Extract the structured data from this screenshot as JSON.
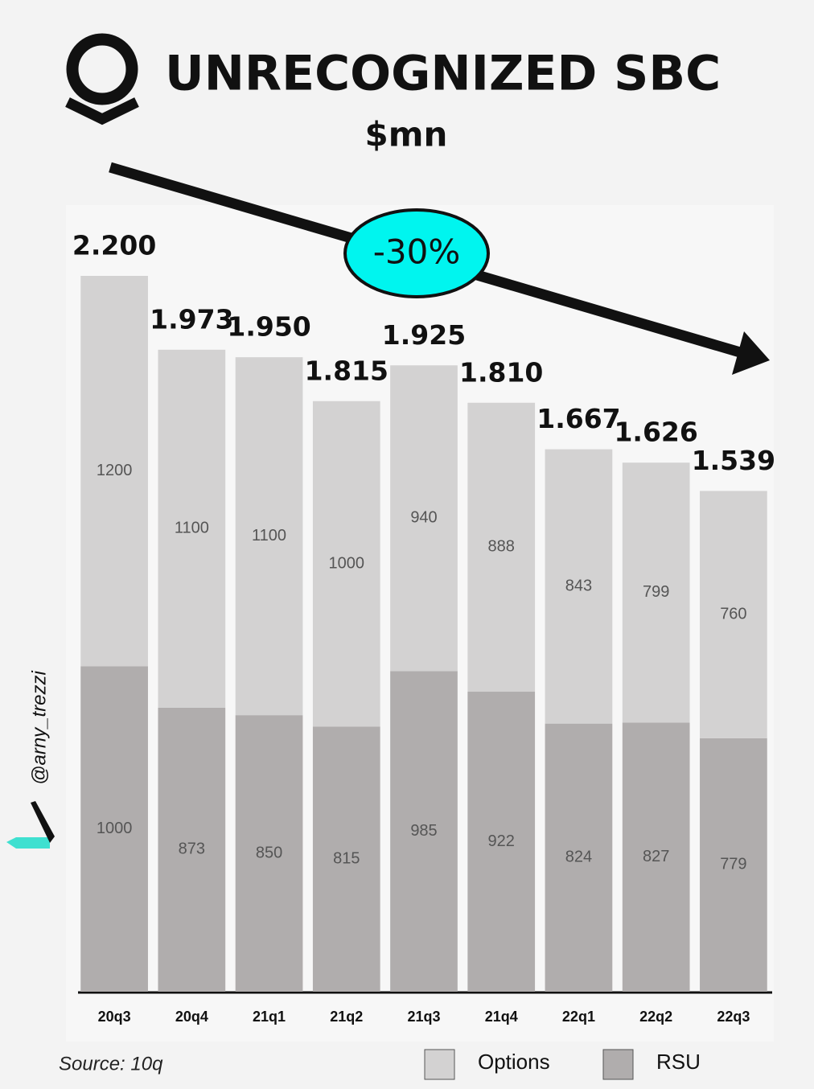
{
  "chart_data": {
    "type": "bar",
    "stacked": true,
    "title": "UNRECOGNIZED SBC",
    "subtitle": "$mn",
    "annotation": "-30%",
    "source": "Source: 10q",
    "watermark": "@arny_trezzi",
    "categories": [
      "20q3",
      "20q4",
      "21q1",
      "21q2",
      "21q3",
      "21q4",
      "22q1",
      "22q2",
      "22q3"
    ],
    "series": [
      {
        "name": "Options",
        "color": "#d3d2d2",
        "values": [
          1200,
          1100,
          1100,
          1000,
          940,
          888,
          843,
          799,
          760
        ]
      },
      {
        "name": "RSU",
        "color": "#b0adad",
        "values": [
          1000,
          873,
          850,
          815,
          985,
          922,
          824,
          827,
          779
        ]
      }
    ],
    "totals": {
      "values": [
        2200,
        1973,
        1950,
        1815,
        1925,
        1810,
        1667,
        1626,
        1539
      ],
      "value_labels": [
        "2.200",
        "1.973",
        "1.950",
        "1.815",
        "1.925",
        "1.810",
        "1.667",
        "1.626",
        "1.539"
      ]
    },
    "ylim": [
      0,
      2200
    ]
  }
}
